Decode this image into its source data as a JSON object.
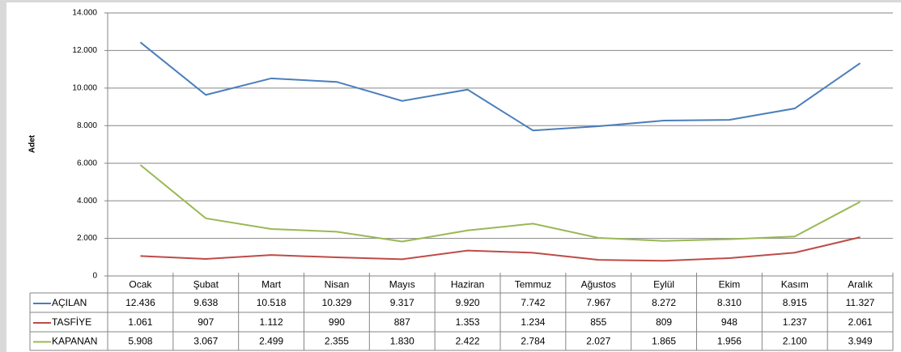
{
  "chart_data": {
    "type": "line",
    "y_label": "Adet",
    "categories": [
      "Ocak",
      "Şubat",
      "Mart",
      "Nisan",
      "Mayıs",
      "Haziran",
      "Temmuz",
      "Ağustos",
      "Eylül",
      "Ekim",
      "Kasım",
      "Aralık"
    ],
    "series": [
      {
        "name": "AÇILAN",
        "color": "#4a7ebb",
        "values": [
          12436,
          9638,
          10518,
          10329,
          9317,
          9920,
          7742,
          7967,
          8272,
          8310,
          8915,
          11327
        ],
        "value_labels": [
          "12.436",
          "9.638",
          "10.518",
          "10.329",
          "9.317",
          "9.920",
          "7.742",
          "7.967",
          "8.272",
          "8.310",
          "8.915",
          "11.327"
        ]
      },
      {
        "name": "TASFİYE",
        "color": "#be4b48",
        "values": [
          1061,
          907,
          1112,
          990,
          887,
          1353,
          1234,
          855,
          809,
          948,
          1237,
          2061
        ],
        "value_labels": [
          "1.061",
          "907",
          "1.112",
          "990",
          "887",
          "1.353",
          "1.234",
          "855",
          "809",
          "948",
          "1.237",
          "2.061"
        ]
      },
      {
        "name": "KAPANAN",
        "color": "#98b954",
        "values": [
          5908,
          3067,
          2499,
          2355,
          1830,
          2422,
          2784,
          2027,
          1865,
          1956,
          2100,
          3949
        ],
        "value_labels": [
          "5.908",
          "3.067",
          "2.499",
          "2.355",
          "1.830",
          "2.422",
          "2.784",
          "2.027",
          "1.865",
          "1.956",
          "2.100",
          "3.949"
        ]
      }
    ],
    "ylim": [
      0,
      14000
    ],
    "yticks": [
      0,
      {
        "value": 2000,
        "label": "2.000"
      },
      {
        "value": 4000,
        "label": "4.000"
      },
      {
        "value": 6000,
        "label": "6.000"
      },
      {
        "value": 8000,
        "label": "8.000"
      },
      {
        "value": 10000,
        "label": "10.000"
      },
      {
        "value": 12000,
        "label": "12.000"
      },
      {
        "value": 14000,
        "label": "14.000"
      }
    ],
    "grid": true
  }
}
